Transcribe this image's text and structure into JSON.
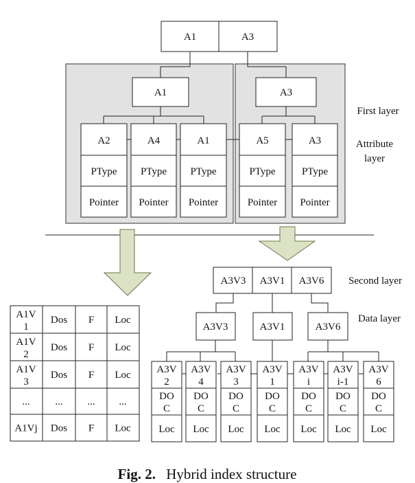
{
  "top_root": [
    "A1",
    "A3"
  ],
  "first_layer": {
    "left_node": "A1",
    "right_node": "A3",
    "label": "First layer"
  },
  "attribute_layer": {
    "label_line1": "Attribute",
    "label_line2": "layer",
    "columns": [
      {
        "attr": "A2",
        "ptype": "PType",
        "pointer": "Pointer"
      },
      {
        "attr": "A4",
        "ptype": "PType",
        "pointer": "Pointer"
      },
      {
        "attr": "A1",
        "ptype": "PType",
        "pointer": "Pointer"
      },
      {
        "attr": "A5",
        "ptype": "PType",
        "pointer": "Pointer"
      },
      {
        "attr": "A3",
        "ptype": "PType",
        "pointer": "Pointer"
      }
    ]
  },
  "second_layer": {
    "cells": [
      "A3V3",
      "A3V1",
      "A3V6"
    ],
    "label": "Second layer"
  },
  "data_layer": {
    "label": "Data layer",
    "mid_nodes": [
      "A3V3",
      "A3V1",
      "A3V6"
    ],
    "leaves": [
      {
        "l1": "A3V",
        "l2": "2",
        "d1": "DO",
        "d2": "C",
        "loc": "Loc"
      },
      {
        "l1": "A3V",
        "l2": "4",
        "d1": "DO",
        "d2": "C",
        "loc": "Loc"
      },
      {
        "l1": "A3V",
        "l2": "3",
        "d1": "DO",
        "d2": "C",
        "loc": "Loc"
      },
      {
        "l1": "A3V",
        "l2": "1",
        "d1": "DO",
        "d2": "C",
        "loc": "Loc"
      },
      {
        "l1": "A3V",
        "l2": "i",
        "d1": "DO",
        "d2": "C",
        "loc": "Loc"
      },
      {
        "l1": "A3V",
        "l2": "i-1",
        "d1": "DO",
        "d2": "C",
        "loc": "Loc"
      },
      {
        "l1": "A3V",
        "l2": "6",
        "d1": "DO",
        "d2": "C",
        "loc": "Loc"
      }
    ]
  },
  "left_table": {
    "rows": [
      {
        "c1a": "A1V",
        "c1b": "1",
        "c2": "Dos",
        "c3": "F",
        "c4": "Loc"
      },
      {
        "c1a": "A1V",
        "c1b": "2",
        "c2": "Dos",
        "c3": "F",
        "c4": "Loc"
      },
      {
        "c1a": "A1V",
        "c1b": "3",
        "c2": "Dos",
        "c3": "F",
        "c4": "Loc"
      },
      {
        "c1a": "...",
        "c1b": "",
        "c2": "...",
        "c3": "...",
        "c4": "..."
      },
      {
        "c1a": "A1Vj",
        "c1b": "",
        "c2": "Dos",
        "c3": "F",
        "c4": "Loc"
      }
    ]
  },
  "caption": {
    "label": "Fig. 2.",
    "text": "Hybrid index structure"
  }
}
